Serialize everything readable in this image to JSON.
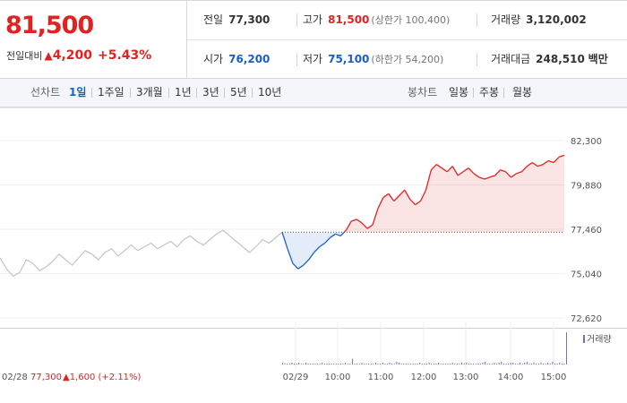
{
  "summary": {
    "price": "81,500",
    "change_label": "전일대비",
    "change_arrow": "▲",
    "change_value": "4,200",
    "change_pct": "+5.43%",
    "prev_close_label": "전일",
    "prev_close": "77,300",
    "high_label": "고가",
    "high": "81,500",
    "upper_limit": "(상한가 100,400)",
    "volume_label": "거래량",
    "volume": "3,120,002",
    "open_label": "시가",
    "open": "76,200",
    "low_label": "저가",
    "low": "75,100",
    "lower_limit": "(하한가 54,200)",
    "amount_label": "거래대금",
    "amount": "248,510",
    "amount_unit": "백만"
  },
  "tabs": {
    "line_label": "선차트",
    "line_items": [
      "1일",
      "1주일",
      "3개월",
      "1년",
      "3년",
      "5년",
      "10년"
    ],
    "candle_label": "봉차트",
    "candle_items": [
      "일봉",
      "주봉",
      "월봉"
    ]
  },
  "colors": {
    "up": "#e12222",
    "down": "#1a5fc9",
    "prev_day": "#c4c4c4",
    "volume": "#7a6fb0"
  },
  "chart_data": {
    "type": "line",
    "ylim": [
      72620,
      82300
    ],
    "y_ticks": [
      "82,300",
      "79,880",
      "77,460",
      "75,040",
      "72,620"
    ],
    "y_tick_values": [
      82300,
      79880,
      77460,
      75040,
      72620
    ],
    "baseline": 77300,
    "x_ticks": [
      "02/29",
      "10:00",
      "11:00",
      "12:00",
      "13:00",
      "14:00",
      "15:00"
    ],
    "prev_day_label": "02/28",
    "prev_day_close": "77,300",
    "prev_day_change": "▲1,600 (+2.11%)",
    "volume_legend": "거래량",
    "series": [
      {
        "values_prev_day": [
          75900,
          75300,
          74900,
          75100,
          75800,
          75600,
          75200,
          75400,
          75700,
          76100,
          75800,
          75500,
          75900,
          76300,
          76100,
          75800,
          76200,
          76400,
          76000,
          76300,
          76600,
          76300,
          76500,
          76700,
          76400,
          76600,
          76800,
          76500,
          76900,
          77100,
          76800,
          76600,
          76900,
          77200,
          77400,
          77100,
          76800,
          76500,
          76200,
          76500,
          76900,
          76700,
          77000,
          77300
        ]
      },
      {
        "values_today": [
          77300,
          76400,
          75600,
          75300,
          75500,
          75800,
          76200,
          76500,
          76700,
          77000,
          77200,
          77100,
          77400,
          77900,
          78000,
          77800,
          77500,
          77700,
          78600,
          79200,
          79400,
          79000,
          79300,
          79600,
          79100,
          78800,
          79000,
          79600,
          80700,
          81000,
          80800,
          80600,
          80900,
          80400,
          80600,
          80800,
          80500,
          80300,
          80200,
          80300,
          80400,
          80700,
          80600,
          80300,
          80500,
          80600,
          80900,
          81100,
          80900,
          81000,
          81200,
          81100,
          81400,
          81500
        ]
      }
    ],
    "volume": [
      2,
      1,
      1,
      1,
      2,
      1,
      1,
      2,
      1,
      1,
      2,
      1,
      1,
      1,
      1,
      1,
      1,
      2,
      1,
      1,
      1,
      1,
      1,
      1,
      1,
      1,
      1,
      2,
      1,
      1,
      6,
      1,
      1,
      1,
      2,
      1,
      1,
      1,
      1,
      1,
      2,
      1,
      1,
      2,
      1,
      1,
      2,
      1,
      1,
      3,
      2,
      1,
      1,
      1,
      1,
      1,
      1,
      1,
      1,
      2,
      1,
      1,
      1,
      2,
      1,
      1,
      1,
      2,
      1,
      1,
      1,
      1,
      1,
      2,
      1,
      1,
      1,
      2,
      1,
      2,
      1,
      1,
      1,
      1,
      1,
      1,
      2,
      3,
      1,
      1,
      1,
      2,
      1,
      2,
      3,
      1,
      1,
      1,
      2,
      2,
      1,
      1,
      2,
      1,
      2,
      3,
      1,
      1,
      2,
      1,
      1,
      2,
      1,
      1,
      2,
      1,
      3,
      1,
      1,
      2,
      1,
      1,
      34
    ],
    "volume_scale": 34
  }
}
